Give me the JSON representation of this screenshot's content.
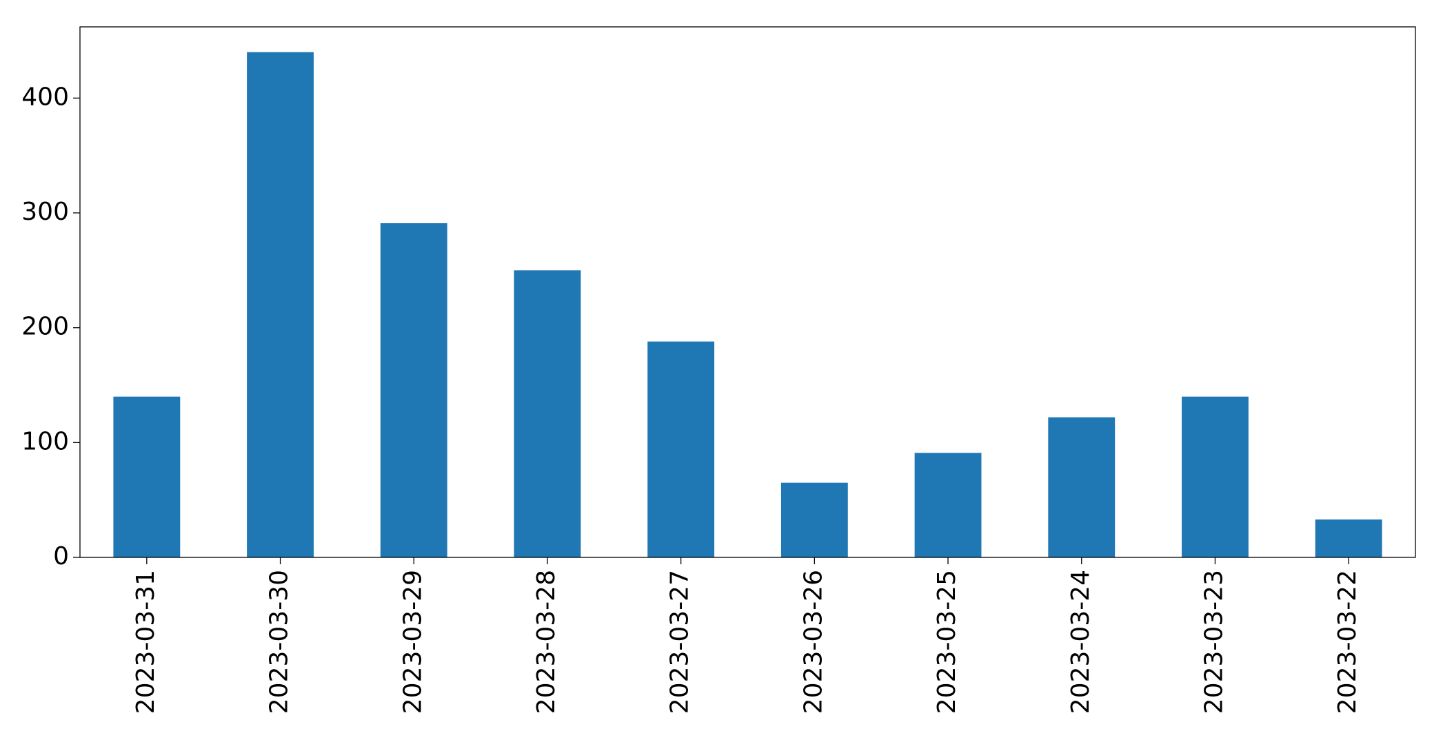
{
  "chart_data": {
    "type": "bar",
    "categories": [
      "2023-03-31",
      "2023-03-30",
      "2023-03-29",
      "2023-03-28",
      "2023-03-27",
      "2023-03-26",
      "2023-03-25",
      "2023-03-24",
      "2023-03-23",
      "2023-03-22"
    ],
    "values": [
      140,
      440,
      291,
      250,
      188,
      65,
      91,
      122,
      140,
      33
    ],
    "color": "#1f77b4",
    "ylim": [
      0,
      462
    ],
    "yticks": [
      0,
      100,
      200,
      300,
      400
    ],
    "grid": false
  }
}
